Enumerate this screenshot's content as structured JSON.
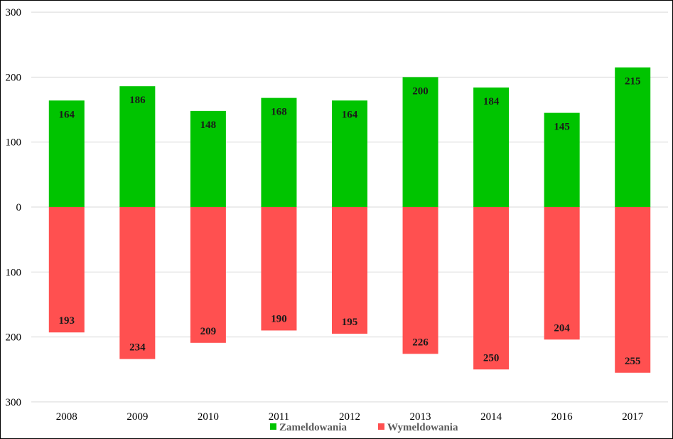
{
  "chart_data": {
    "type": "bar",
    "categories": [
      "2008",
      "2009",
      "2010",
      "2011",
      "2012",
      "2013",
      "2014",
      "2016",
      "2017"
    ],
    "series": [
      {
        "name": "Zameldowania",
        "color": "#00c400",
        "direction": "up",
        "values": [
          164,
          186,
          148,
          168,
          164,
          200,
          184,
          145,
          215
        ]
      },
      {
        "name": "Wymeldowania",
        "color": "#ff5050",
        "direction": "down",
        "values": [
          193,
          234,
          209,
          190,
          195,
          226,
          250,
          204,
          255
        ]
      }
    ],
    "y_ticks": [
      "300",
      "200",
      "100",
      "0",
      "100",
      "200",
      "300"
    ],
    "ylim": [
      -300,
      300
    ],
    "grid": true,
    "gridline_color": "#d9d9d9",
    "legend_position": "bottom-center",
    "title": "",
    "xlabel": "",
    "ylabel": ""
  }
}
